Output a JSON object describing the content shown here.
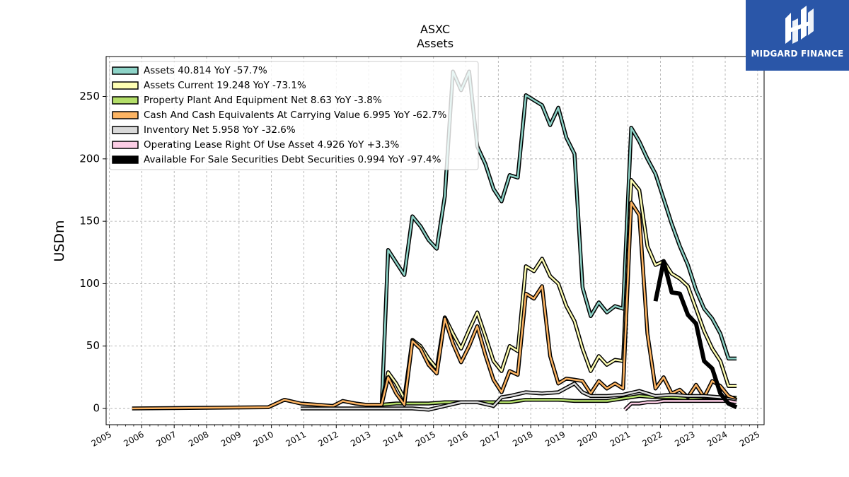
{
  "brand": {
    "name": "MIDGARD FINANCE",
    "bg": "#2a56a8"
  },
  "chart_data": {
    "type": "line",
    "title": "ASXC",
    "subtitle": "Assets",
    "ylabel": "USDm",
    "ylim": [
      -13,
      282
    ],
    "xlim": [
      2004.9,
      2025.2
    ],
    "yticks": [
      0,
      50,
      100,
      150,
      200,
      250
    ],
    "xticks": [
      "2005",
      "2006",
      "2007",
      "2008",
      "2009",
      "2010",
      "2011",
      "2012",
      "2013",
      "2014",
      "2015",
      "2016",
      "2017",
      "2018",
      "2019",
      "2020",
      "2021",
      "2022",
      "2023",
      "2024",
      "2025"
    ],
    "grid": true,
    "legend_position": "top-left",
    "series": [
      {
        "name": "Assets  40.814 YoY -57.7%",
        "color": "#8dd3c7",
        "width": 2.5,
        "x": [
          2013.4,
          2013.6,
          2013.85,
          2014.1,
          2014.35,
          2014.6,
          2014.85,
          2015.1,
          2015.35,
          2015.6,
          2015.85,
          2016.1,
          2016.35,
          2016.6,
          2016.85,
          2017.1,
          2017.35,
          2017.6,
          2017.85,
          2018.1,
          2018.35,
          2018.6,
          2018.85,
          2019.1,
          2019.35,
          2019.6,
          2019.85,
          2020.1,
          2020.35,
          2020.6,
          2020.85,
          2021.1,
          2021.35,
          2021.6,
          2021.85,
          2022.1,
          2022.35,
          2022.6,
          2022.85,
          2023.1,
          2023.35,
          2023.6,
          2023.85,
          2024.1,
          2024.35
        ],
        "y": [
          0,
          127,
          117,
          107,
          154,
          146,
          135,
          128,
          170,
          270,
          255,
          270,
          210,
          196,
          176,
          166,
          187,
          185,
          251,
          247,
          243,
          227,
          241,
          217,
          204,
          97,
          74,
          85,
          77,
          82,
          80,
          225,
          214,
          200,
          188,
          168,
          148,
          130,
          115,
          95,
          80,
          72,
          60,
          40,
          40
        ]
      },
      {
        "name": "Assets Current  19.248 YoY -73.1%",
        "color": "#ffffb3",
        "width": 2.5,
        "x": [
          2013.4,
          2013.6,
          2013.85,
          2014.1,
          2014.35,
          2014.6,
          2014.85,
          2015.1,
          2015.35,
          2015.6,
          2015.85,
          2016.1,
          2016.35,
          2016.6,
          2016.85,
          2017.1,
          2017.35,
          2017.6,
          2017.85,
          2018.1,
          2018.35,
          2018.6,
          2018.85,
          2019.1,
          2019.35,
          2019.6,
          2019.85,
          2020.1,
          2020.35,
          2020.6,
          2020.85,
          2021.1,
          2021.35,
          2021.6,
          2021.85,
          2022.1,
          2022.35,
          2022.6,
          2022.85,
          2023.1,
          2023.35,
          2023.6,
          2023.85,
          2024.1,
          2024.35
        ],
        "y": [
          5,
          29,
          20,
          8,
          55,
          50,
          40,
          32,
          73,
          60,
          48,
          63,
          77,
          58,
          38,
          30,
          50,
          46,
          114,
          110,
          120,
          106,
          100,
          82,
          70,
          48,
          30,
          42,
          35,
          39,
          38,
          183,
          175,
          130,
          115,
          118,
          108,
          104,
          98,
          80,
          62,
          48,
          38,
          18,
          18
        ]
      },
      {
        "name": "Property Plant And Equipment Net  8.63 YoY -3.8%",
        "color": "#b3de69",
        "width": 2.5,
        "x": [
          2013.4,
          2013.85,
          2014.35,
          2014.85,
          2015.35,
          2015.85,
          2016.35,
          2016.85,
          2017.35,
          2017.85,
          2018.35,
          2018.85,
          2019.35,
          2019.85,
          2020.35,
          2020.85,
          2021.35,
          2021.85,
          2022.35,
          2022.85,
          2023.35,
          2023.85,
          2024.35
        ],
        "y": [
          3,
          4,
          4,
          4,
          5,
          5,
          5,
          5,
          5,
          7,
          7,
          7,
          6,
          6,
          6,
          8,
          10,
          9,
          9,
          8,
          9,
          9,
          8.6
        ]
      },
      {
        "name": "Cash And Cash Equivalents At Carrying Value  6.995 YoY -62.7%",
        "color": "#fdb462",
        "width": 2.5,
        "x": [
          2005.7,
          2009.9,
          2010.4,
          2010.9,
          2011.4,
          2011.9,
          2012.2,
          2012.6,
          2012.9,
          2013.4,
          2013.6,
          2013.85,
          2014.1,
          2014.35,
          2014.6,
          2014.85,
          2015.1,
          2015.35,
          2015.6,
          2015.85,
          2016.1,
          2016.35,
          2016.6,
          2016.85,
          2017.1,
          2017.35,
          2017.6,
          2017.85,
          2018.1,
          2018.35,
          2018.6,
          2018.85,
          2019.1,
          2019.35,
          2019.6,
          2019.85,
          2020.1,
          2020.35,
          2020.6,
          2020.85,
          2021.1,
          2021.35,
          2021.6,
          2021.85,
          2022.1,
          2022.35,
          2022.6,
          2022.85,
          2023.1,
          2023.35,
          2023.6,
          2023.85,
          2024.1,
          2024.35
        ],
        "y": [
          0,
          1,
          7,
          4,
          3,
          2,
          6,
          4,
          3,
          3,
          25,
          12,
          3,
          54,
          48,
          35,
          28,
          72,
          52,
          37,
          50,
          66,
          43,
          23,
          13,
          30,
          27,
          92,
          88,
          98,
          42,
          20,
          24,
          23,
          22,
          12,
          22,
          16,
          20,
          16,
          165,
          155,
          60,
          16,
          25,
          12,
          15,
          9,
          19,
          9,
          22,
          18,
          10,
          7
        ]
      },
      {
        "name": "Inventory Net  5.958 YoY -32.6%",
        "color": "#d9d9d9",
        "width": 2.5,
        "x": [
          2010.9,
          2011.4,
          2011.9,
          2012.4,
          2012.9,
          2013.4,
          2013.85,
          2014.35,
          2014.85,
          2015.35,
          2015.85,
          2016.35,
          2016.85,
          2017.1,
          2017.35,
          2017.85,
          2018.35,
          2018.85,
          2019.35,
          2019.6,
          2019.85,
          2020.1,
          2020.35,
          2020.85,
          2021.35,
          2021.85,
          2022.35,
          2022.85,
          2023.35,
          2023.85,
          2024.35
        ],
        "y": [
          0,
          0,
          0,
          0,
          0,
          0,
          0,
          0,
          -1,
          2,
          5,
          5,
          2,
          9,
          10,
          13,
          12,
          13,
          20,
          13,
          10,
          10,
          10,
          11,
          14,
          10,
          11,
          10,
          10,
          9,
          6
        ]
      },
      {
        "name": "Operating Lease Right Of Use Asset  4.926 YoY +3.3%",
        "color": "#fccde5",
        "width": 2.5,
        "x": [
          2020.9,
          2021.1,
          2021.35,
          2021.6,
          2021.85,
          2022.1,
          2022.35,
          2022.6,
          2022.85,
          2023.1,
          2023.35,
          2023.6,
          2023.85,
          2024.1,
          2024.35
        ],
        "y": [
          -1,
          4,
          4,
          5,
          5,
          6,
          6,
          6,
          6,
          6,
          6,
          6,
          6,
          6,
          5
        ]
      },
      {
        "name": "Available For Sale Securities Debt Securities  0.994 YoY -97.4%",
        "color": "#000000",
        "width": 6,
        "x": [
          2021.85,
          2022.1,
          2022.35,
          2022.6,
          2022.85,
          2023.1,
          2023.35,
          2023.6,
          2023.85,
          2024.1,
          2024.35
        ],
        "y": [
          86,
          118,
          93,
          92,
          75,
          68,
          38,
          32,
          12,
          4,
          1
        ]
      }
    ]
  }
}
